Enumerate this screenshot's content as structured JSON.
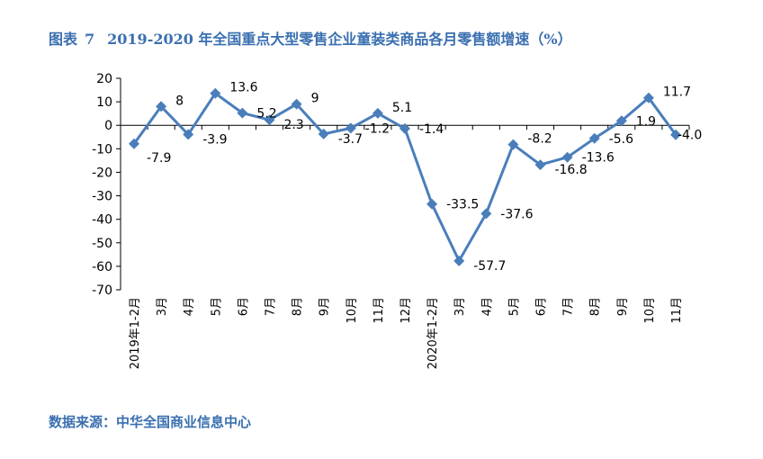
{
  "figure": {
    "label": "图表",
    "number": "7",
    "title": "2019-2020 年全国重点大型零售企业童装类商品各月零售额增速（%）"
  },
  "source": "数据来源：中华全国商业信息中心",
  "colors": {
    "line": "#4a7ebb",
    "title": "#3a6fb0",
    "axis": "#000000"
  },
  "chart_data": {
    "type": "line",
    "title": "",
    "xlabel": "",
    "ylabel": "",
    "ylim": [
      -70,
      20
    ],
    "yticks": [
      20,
      10,
      0,
      -10,
      -20,
      -30,
      -40,
      -50,
      -60,
      -70
    ],
    "grid": false,
    "legend": "none",
    "marker": "diamond",
    "categories": [
      "2019年1-2月",
      "3月",
      "4月",
      "5月",
      "6月",
      "7月",
      "8月",
      "9月",
      "10月",
      "11月",
      "12月",
      "2020年1-2月",
      "3月",
      "4月",
      "5月",
      "6月",
      "7月",
      "8月",
      "9月",
      "10月",
      "11月"
    ],
    "series": [
      {
        "values": [
          -7.9,
          8,
          -3.9,
          13.6,
          5.2,
          2.3,
          9,
          -3.7,
          -1.2,
          5.1,
          -1.4,
          -33.5,
          -57.7,
          -37.6,
          -8.2,
          -16.8,
          -13.6,
          -5.6,
          1.9,
          11.7,
          -4.0
        ],
        "labels": [
          "-7.9",
          "8",
          "-3.9",
          "13.6",
          "5.2",
          "2.3",
          "9",
          "-3.7",
          "-1.2",
          "5.1",
          "-1.4",
          "-33.5",
          "-57.7",
          "-37.6",
          "-8.2",
          "-16.8",
          "-13.6",
          "-5.6",
          "1.9",
          "11.7",
          "-4.0"
        ]
      }
    ]
  }
}
